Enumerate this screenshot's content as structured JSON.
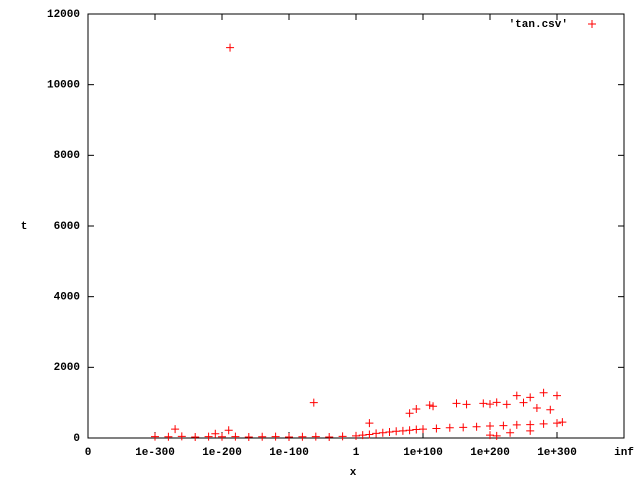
{
  "chart_data": {
    "type": "scatter",
    "x_label": "x",
    "y_label": "t",
    "legend": "top-right",
    "series": [
      {
        "name": "'tan.csv'",
        "color": "#ff0000",
        "x": [
          -300,
          -280,
          -260,
          -240,
          -220,
          -200,
          -180,
          -160,
          -140,
          -120,
          -100,
          -80,
          -60,
          -40,
          -20,
          0,
          -270,
          -190,
          -188,
          -63,
          -210,
          10,
          20,
          30,
          40,
          50,
          60,
          70,
          80,
          90,
          100,
          120,
          140,
          160,
          180,
          200,
          220,
          240,
          260,
          280,
          300,
          308,
          20,
          80,
          90,
          110,
          115,
          150,
          165,
          190,
          200,
          210,
          225,
          240,
          260,
          280,
          300,
          250,
          270,
          290,
          200,
          210,
          230,
          260
        ],
        "values": [
          40,
          35,
          45,
          30,
          40,
          35,
          40,
          30,
          35,
          40,
          30,
          35,
          40,
          30,
          45,
          60,
          250,
          220,
          11050,
          1000,
          120,
          80,
          100,
          130,
          150,
          170,
          190,
          200,
          220,
          240,
          250,
          270,
          290,
          300,
          320,
          340,
          350,
          370,
          380,
          400,
          420,
          450,
          420,
          700,
          820,
          930,
          900,
          980,
          950,
          980,
          960,
          1010,
          950,
          1200,
          1150,
          1280,
          1200,
          1000,
          850,
          800,
          80,
          60,
          150,
          200
        ]
      }
    ],
    "xlim": [
      -400,
      400
    ],
    "xticks": [
      {
        "value": -400,
        "label": "0"
      },
      {
        "value": -300,
        "label": "1e-300"
      },
      {
        "value": -200,
        "label": "1e-200"
      },
      {
        "value": -100,
        "label": "1e-100"
      },
      {
        "value": 0,
        "label": "1"
      },
      {
        "value": 100,
        "label": "1e+100"
      },
      {
        "value": 200,
        "label": "1e+200"
      },
      {
        "value": 300,
        "label": "1e+300"
      },
      {
        "value": 400,
        "label": "inf"
      }
    ],
    "ylim": [
      0,
      12000
    ],
    "yticks": [
      0,
      2000,
      4000,
      6000,
      8000,
      10000,
      12000
    ],
    "grid": false
  }
}
